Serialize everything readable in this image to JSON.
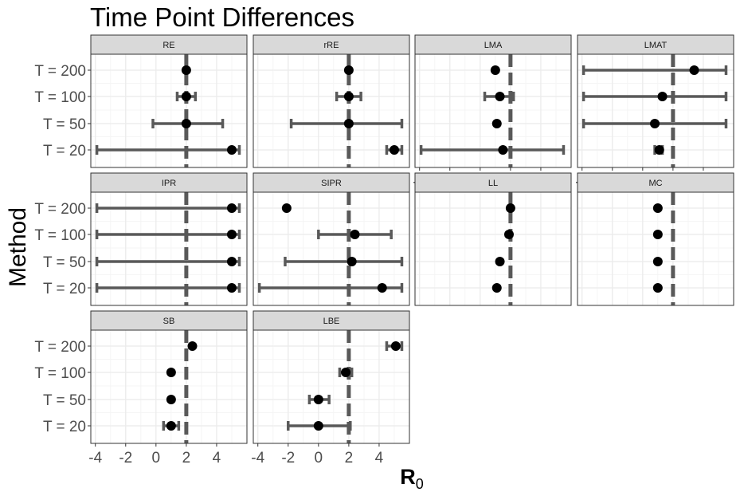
{
  "chart_data": {
    "type": "scatter",
    "title": "Time Point Differences",
    "ylabel": "Method",
    "xlabel": "R",
    "xlabel_sub": "0",
    "x_ticks": [
      -4,
      -2,
      0,
      2,
      4
    ],
    "xlim": [
      -4.3,
      6.0
    ],
    "reference_value": 2,
    "categories": [
      "T = 200",
      "T = 100",
      "T = 50",
      "T = 20"
    ],
    "colors": {
      "strip_bg": "#d9d9d9",
      "panel_border": "#333333",
      "grid_major": "#ebebeb",
      "grid_minor": "#f5f5f5",
      "errorbar": "#595959",
      "refline": "#595959",
      "point": "#000000"
    },
    "panels": [
      {
        "name": "RE",
        "points": [
          {
            "t": "T = 200",
            "est": 2.0,
            "lo": null,
            "hi": null
          },
          {
            "t": "T = 100",
            "est": 2.0,
            "lo": 1.4,
            "hi": 2.6
          },
          {
            "t": "T = 50",
            "est": 2.0,
            "lo": -0.2,
            "hi": 4.4
          },
          {
            "t": "T = 20",
            "est": 5.0,
            "lo": -3.9,
            "hi": 5.5
          }
        ]
      },
      {
        "name": "rRE",
        "points": [
          {
            "t": "T = 200",
            "est": 2.0,
            "lo": null,
            "hi": null
          },
          {
            "t": "T = 100",
            "est": 2.0,
            "lo": 1.2,
            "hi": 2.8
          },
          {
            "t": "T = 50",
            "est": 2.0,
            "lo": -1.8,
            "hi": 5.5
          },
          {
            "t": "T = 20",
            "est": 5.0,
            "lo": 4.5,
            "hi": 5.5
          }
        ]
      },
      {
        "name": "LMA",
        "points": [
          {
            "t": "T = 200",
            "est": 1.0,
            "lo": null,
            "hi": null
          },
          {
            "t": "T = 100",
            "est": 1.3,
            "lo": 0.3,
            "hi": 2.2
          },
          {
            "t": "T = 50",
            "est": 1.1,
            "lo": null,
            "hi": null
          },
          {
            "t": "T = 20",
            "est": 1.5,
            "lo": -3.9,
            "hi": 5.5
          }
        ]
      },
      {
        "name": "LMAT",
        "points": [
          {
            "t": "T = 200",
            "est": 3.4,
            "lo": -3.9,
            "hi": 5.5
          },
          {
            "t": "T = 100",
            "est": 1.3,
            "lo": -3.9,
            "hi": 5.5
          },
          {
            "t": "T = 50",
            "est": 0.8,
            "lo": -3.9,
            "hi": 5.5
          },
          {
            "t": "T = 20",
            "est": 1.1,
            "lo": 0.8,
            "hi": 1.3
          }
        ]
      },
      {
        "name": "IPR",
        "points": [
          {
            "t": "T = 200",
            "est": 5.0,
            "lo": -3.9,
            "hi": 5.5
          },
          {
            "t": "T = 100",
            "est": 5.0,
            "lo": -3.9,
            "hi": 5.5
          },
          {
            "t": "T = 50",
            "est": 5.0,
            "lo": -3.9,
            "hi": 5.5
          },
          {
            "t": "T = 20",
            "est": 5.0,
            "lo": -3.9,
            "hi": 5.5
          }
        ]
      },
      {
        "name": "SIPR",
        "points": [
          {
            "t": "T = 200",
            "est": -2.1,
            "lo": null,
            "hi": null
          },
          {
            "t": "T = 100",
            "est": 2.4,
            "lo": 0.0,
            "hi": 4.8
          },
          {
            "t": "T = 50",
            "est": 2.2,
            "lo": -2.2,
            "hi": 5.5
          },
          {
            "t": "T = 20",
            "est": 4.2,
            "lo": -3.9,
            "hi": 5.5
          }
        ]
      },
      {
        "name": "LL",
        "points": [
          {
            "t": "T = 200",
            "est": 2.0,
            "lo": null,
            "hi": null
          },
          {
            "t": "T = 100",
            "est": 1.9,
            "lo": null,
            "hi": null
          },
          {
            "t": "T = 50",
            "est": 1.3,
            "lo": null,
            "hi": null
          },
          {
            "t": "T = 20",
            "est": 1.1,
            "lo": null,
            "hi": null
          }
        ]
      },
      {
        "name": "MC",
        "points": [
          {
            "t": "T = 200",
            "est": 1.0,
            "lo": null,
            "hi": null
          },
          {
            "t": "T = 100",
            "est": 1.0,
            "lo": null,
            "hi": null
          },
          {
            "t": "T = 50",
            "est": 1.0,
            "lo": null,
            "hi": null
          },
          {
            "t": "T = 20",
            "est": 1.0,
            "lo": null,
            "hi": null
          }
        ]
      },
      {
        "name": "SB",
        "points": [
          {
            "t": "T = 200",
            "est": 2.4,
            "lo": null,
            "hi": null
          },
          {
            "t": "T = 100",
            "est": 1.0,
            "lo": null,
            "hi": null
          },
          {
            "t": "T = 50",
            "est": 1.0,
            "lo": null,
            "hi": null
          },
          {
            "t": "T = 20",
            "est": 1.0,
            "lo": 0.5,
            "hi": 1.5
          }
        ]
      },
      {
        "name": "LBE",
        "points": [
          {
            "t": "T = 200",
            "est": 5.1,
            "lo": 4.5,
            "hi": 5.5
          },
          {
            "t": "T = 100",
            "est": 1.8,
            "lo": 1.4,
            "hi": 2.2
          },
          {
            "t": "T = 50",
            "est": 0.0,
            "lo": -0.6,
            "hi": 0.7
          },
          {
            "t": "T = 20",
            "est": 0.0,
            "lo": -2.0,
            "hi": 2.1
          }
        ]
      }
    ]
  }
}
